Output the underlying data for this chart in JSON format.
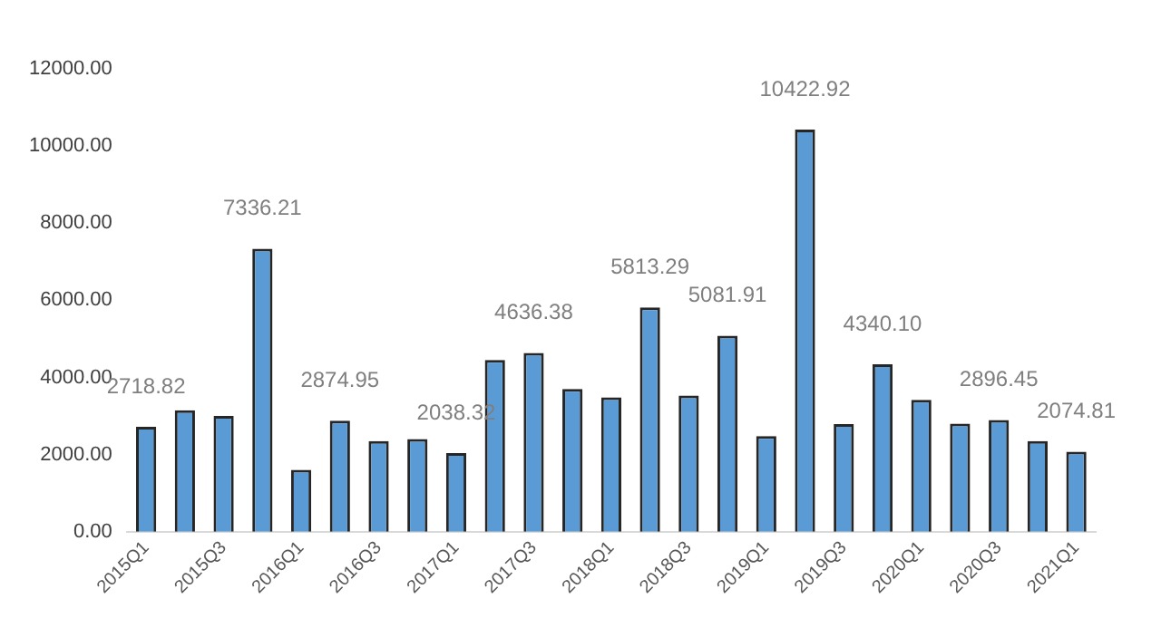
{
  "chart_data": {
    "type": "bar",
    "categories": [
      "2015Q1",
      null,
      "2015Q3",
      null,
      "2016Q1",
      null,
      "2016Q3",
      null,
      "2017Q1",
      null,
      "2017Q3",
      null,
      "2018Q1",
      null,
      "2018Q3",
      null,
      "2019Q1",
      null,
      "2019Q3",
      null,
      "2020Q1",
      null,
      "2020Q3",
      null,
      "2021Q1"
    ],
    "values": [
      2718.82,
      3150,
      3000,
      7336.21,
      1600,
      2874.95,
      2350,
      2400,
      2038.32,
      4450,
      4636.38,
      3700,
      3480,
      5813.29,
      3530,
      5081.91,
      2480,
      10422.92,
      2790,
      4340.1,
      3420,
      2800,
      2896.45,
      2350,
      2074.81
    ],
    "value_labels": [
      "2718.82",
      null,
      null,
      "7336.21",
      null,
      "2874.95",
      null,
      null,
      "2038.32",
      null,
      "4636.38",
      null,
      null,
      "5813.29",
      null,
      "5081.91",
      null,
      "10422.92",
      null,
      "4340.10",
      null,
      null,
      "2896.45",
      null,
      "2074.81"
    ],
    "color": "#5b9bd5",
    "ylim": [
      0,
      12000
    ],
    "yticks": [
      {
        "value": 0,
        "label": "0.00"
      },
      {
        "value": 2000,
        "label": "2000.00"
      },
      {
        "value": 4000,
        "label": "4000.00"
      },
      {
        "value": 6000,
        "label": "6000.00"
      },
      {
        "value": 8000,
        "label": "8000.00"
      },
      {
        "value": 10000,
        "label": "10000.00"
      },
      {
        "value": 12000,
        "label": "12000.00"
      }
    ],
    "grid": false,
    "legend": false
  }
}
